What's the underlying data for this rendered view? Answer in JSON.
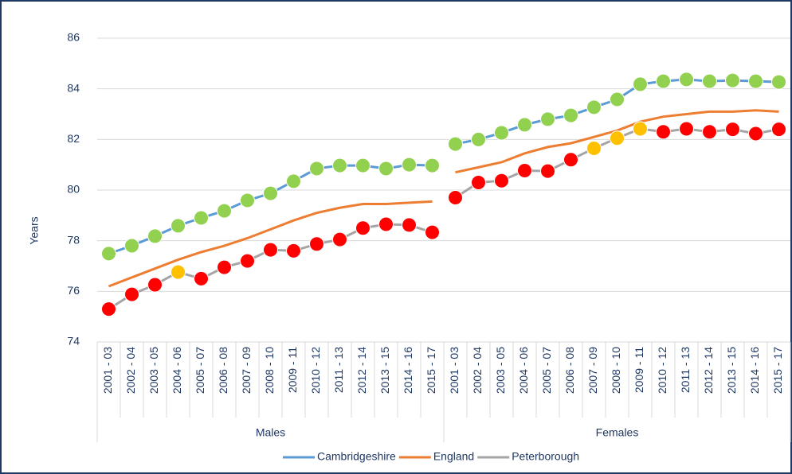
{
  "chart_data": {
    "type": "line",
    "y_label": "Years",
    "ylim": [
      74,
      86
    ],
    "yticks": [
      74,
      76,
      78,
      80,
      82,
      84,
      86
    ],
    "grid": true,
    "legend": "bottom",
    "groups": [
      {
        "label": "Males",
        "categories": [
          "2001 - 03",
          "2002 - 04",
          "2003 - 05",
          "2004 - 06",
          "2005 - 07",
          "2006 - 08",
          "2007 - 09",
          "2008 - 10",
          "2009 - 11",
          "2010 - 12",
          "2011 - 13",
          "2012 - 14",
          "2013 - 15",
          "2014 - 16",
          "2015 - 17"
        ]
      },
      {
        "label": "Females",
        "categories": [
          "2001 - 03",
          "2002 - 04",
          "2003 - 05",
          "2004 - 06",
          "2005 - 07",
          "2006 - 08",
          "2007 - 09",
          "2008 - 10",
          "2009 - 11",
          "2010 - 12",
          "2011 - 13",
          "2012 - 14",
          "2013 - 15",
          "2014 - 16",
          "2015 - 17"
        ]
      }
    ],
    "series": [
      {
        "name": "Cambridgeshire",
        "color": "#5b9bd5",
        "values": [
          [
            77.49,
            77.8,
            78.18,
            78.59,
            78.9,
            79.18,
            79.59,
            79.87,
            80.35,
            80.85,
            80.97,
            80.97,
            80.85,
            81.0,
            80.97
          ],
          [
            81.82,
            82.0,
            82.26,
            82.58,
            82.8,
            82.95,
            83.27,
            83.58,
            84.18,
            84.3,
            84.37,
            84.3,
            84.33,
            84.3,
            84.27
          ]
        ],
        "marker_colors": [
          [
            "#92d050",
            "#92d050",
            "#92d050",
            "#92d050",
            "#92d050",
            "#92d050",
            "#92d050",
            "#92d050",
            "#92d050",
            "#92d050",
            "#92d050",
            "#92d050",
            "#92d050",
            "#92d050",
            "#92d050"
          ],
          [
            "#92d050",
            "#92d050",
            "#92d050",
            "#92d050",
            "#92d050",
            "#92d050",
            "#92d050",
            "#92d050",
            "#92d050",
            "#92d050",
            "#92d050",
            "#92d050",
            "#92d050",
            "#92d050",
            "#92d050"
          ]
        ]
      },
      {
        "name": "England",
        "color": "#ed7d31",
        "values": [
          [
            76.2,
            76.55,
            76.9,
            77.25,
            77.55,
            77.8,
            78.1,
            78.45,
            78.8,
            79.1,
            79.3,
            79.45,
            79.45,
            79.5,
            79.55
          ],
          [
            80.7,
            80.9,
            81.1,
            81.45,
            81.7,
            81.85,
            82.1,
            82.35,
            82.7,
            82.9,
            83.0,
            83.1,
            83.1,
            83.15,
            83.1
          ]
        ]
      },
      {
        "name": "Peterborough",
        "color": "#a5a5a5",
        "values": [
          [
            75.3,
            75.88,
            76.26,
            76.76,
            76.5,
            76.95,
            77.2,
            77.64,
            77.6,
            77.87,
            78.05,
            78.5,
            78.65,
            78.62,
            78.33
          ],
          [
            79.7,
            80.3,
            80.37,
            80.77,
            80.75,
            81.2,
            81.65,
            82.05,
            82.42,
            82.3,
            82.42,
            82.3,
            82.4,
            82.23,
            82.4
          ]
        ],
        "marker_colors": [
          [
            "#ff0000",
            "#ff0000",
            "#ff0000",
            "#ffc000",
            "#ff0000",
            "#ff0000",
            "#ff0000",
            "#ff0000",
            "#ff0000",
            "#ff0000",
            "#ff0000",
            "#ff0000",
            "#ff0000",
            "#ff0000",
            "#ff0000"
          ],
          [
            "#ff0000",
            "#ff0000",
            "#ff0000",
            "#ff0000",
            "#ff0000",
            "#ff0000",
            "#ffc000",
            "#ffc000",
            "#ffc000",
            "#ff0000",
            "#ff0000",
            "#ff0000",
            "#ff0000",
            "#ff0000",
            "#ff0000"
          ]
        ]
      }
    ]
  }
}
